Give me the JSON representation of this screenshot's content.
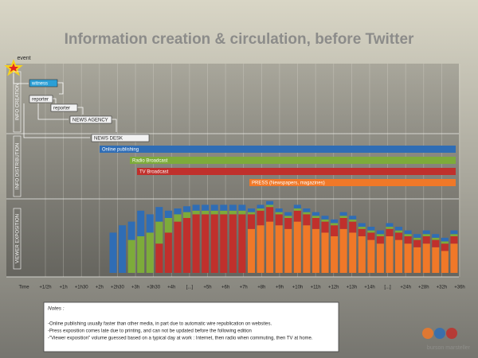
{
  "title": "Information creation & circulation, before Twitter",
  "event": "event",
  "sections": [
    "INFO CREATION",
    "INFO DISTRIBUTION",
    "VIEWER EXPOSITION"
  ],
  "creation": [
    "witness",
    "reporter",
    "reporter",
    "NEWS AGENCY",
    "NEWS DESK"
  ],
  "distribution": [
    {
      "label": "Online publishing",
      "color": "#2f6db5"
    },
    {
      "label": "Radio Broadcast",
      "color": "#7dab3a"
    },
    {
      "label": "TV Broadcast",
      "color": "#c0302c"
    },
    {
      "label": "PRESS (Newspapers, magazines)",
      "color": "#f07828"
    }
  ],
  "time": [
    "Time",
    "+1/2h",
    "+1h",
    "+1h30",
    "+2h",
    "+2h30",
    "+3h",
    "+3h30",
    "+4h",
    "[...]",
    "+5h",
    "+6h",
    "+7h",
    "+8h",
    "+9h",
    "+10h",
    "+11h",
    "+12h",
    "+13h",
    "+14h",
    "[...]",
    "+24h",
    "+28h",
    "+32h",
    "+36h"
  ],
  "exposition": {
    "colors": [
      "#2f6db5",
      "#7dab3a",
      "#c0302c",
      "#f07828"
    ],
    "stacks": [
      [
        55,
        65,
        25,
        35,
        25,
        20,
        10,
        8,
        8,
        8,
        8,
        8,
        8,
        8,
        8,
        5,
        5,
        5,
        5,
        5,
        5,
        5,
        5,
        5,
        5,
        5,
        5,
        5,
        5,
        5,
        5,
        5,
        5,
        5,
        5,
        5,
        5,
        5
      ],
      [
        0,
        0,
        45,
        50,
        55,
        30,
        20,
        10,
        8,
        5,
        5,
        5,
        5,
        5,
        5,
        3,
        3,
        3,
        3,
        3,
        3,
        3,
        3,
        3,
        3,
        3,
        3,
        3,
        3,
        3,
        3,
        3,
        3,
        3,
        3,
        3,
        3,
        3
      ],
      [
        0,
        0,
        0,
        0,
        0,
        40,
        55,
        70,
        75,
        80,
        80,
        80,
        80,
        80,
        80,
        20,
        20,
        20,
        15,
        15,
        15,
        15,
        15,
        15,
        15,
        15,
        15,
        10,
        10,
        10,
        10,
        10,
        10,
        10,
        10,
        10,
        10,
        10
      ],
      [
        0,
        0,
        0,
        0,
        0,
        0,
        0,
        0,
        0,
        0,
        0,
        0,
        0,
        0,
        0,
        60,
        65,
        70,
        65,
        60,
        70,
        65,
        60,
        55,
        50,
        60,
        55,
        50,
        45,
        40,
        50,
        45,
        40,
        35,
        40,
        35,
        30,
        40
      ]
    ]
  },
  "notes": {
    "heading": "Notes :",
    "lines": [
      "-Online publishing usually faster than other media, in part due to automatic wire republication on websites.",
      "-Press exposition comes late due to printing, and can not be updated before the following edition",
      "-\"Viewer exposition\" volume guessed based on a typical day at work : Internet, then radio when commuting, then TV at home."
    ]
  },
  "logo": "burson marsteller"
}
